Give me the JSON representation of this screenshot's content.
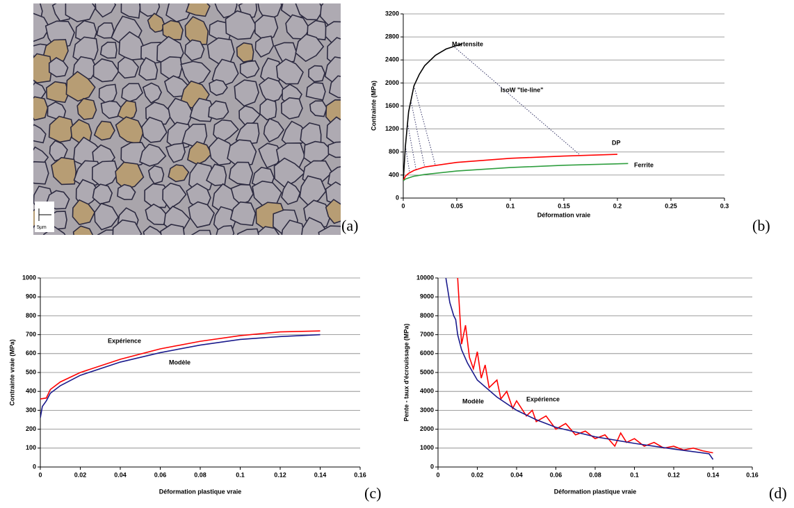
{
  "panel_labels": [
    "(a)",
    "(b)",
    "(c)",
    "(d)"
  ],
  "micrograph": {
    "scale_label": "5µm"
  },
  "chart_data": [
    {
      "type": "line",
      "xlabel": "Déformation vraie",
      "ylabel": "Contrainte (MPa)",
      "xlim": [
        0,
        0.3
      ],
      "xticks": [
        0,
        0.05,
        0.1,
        0.15,
        0.2,
        0.25,
        0.3
      ],
      "ylim": [
        0,
        3200
      ],
      "yticks": [
        0,
        400,
        800,
        1200,
        1600,
        2000,
        2400,
        2800,
        3200
      ],
      "grid": true,
      "series": [
        {
          "name": "Martensite",
          "color": "#000000",
          "x": [
            0,
            0.002,
            0.005,
            0.01,
            0.015,
            0.02,
            0.03,
            0.04,
            0.05,
            0.055
          ],
          "values": [
            300,
            900,
            1500,
            1950,
            2150,
            2300,
            2480,
            2590,
            2650,
            2680
          ]
        },
        {
          "name": "DP",
          "color": "#ff0000",
          "x": [
            0,
            0.002,
            0.005,
            0.01,
            0.02,
            0.05,
            0.1,
            0.15,
            0.2
          ],
          "values": [
            300,
            380,
            430,
            480,
            540,
            620,
            690,
            730,
            760
          ]
        },
        {
          "name": "Ferrite",
          "color": "#2e9e3e",
          "x": [
            0,
            0.002,
            0.005,
            0.01,
            0.02,
            0.05,
            0.1,
            0.15,
            0.21
          ],
          "values": [
            300,
            330,
            350,
            380,
            410,
            470,
            530,
            570,
            600
          ]
        }
      ],
      "tie_line_label": "IsoW \"tie-line\"",
      "tie_lines": [
        {
          "x": [
            0.048,
            0.165
          ],
          "values": [
            2620,
            750
          ]
        },
        {
          "x": [
            0.002,
            0.006
          ],
          "values": [
            900,
            440
          ]
        },
        {
          "x": [
            0.004,
            0.012
          ],
          "values": [
            1300,
            490
          ]
        },
        {
          "x": [
            0.007,
            0.02
          ],
          "values": [
            1700,
            540
          ]
        },
        {
          "x": [
            0.01,
            0.03
          ],
          "values": [
            1950,
            570
          ]
        }
      ]
    },
    {
      "type": "line",
      "xlabel": "Déformation plastique vraie",
      "ylabel": "Contrainte vraie (MPa)",
      "xlim": [
        0,
        0.16
      ],
      "xticks": [
        0,
        0.02,
        0.04,
        0.06,
        0.08,
        0.1,
        0.12,
        0.14,
        0.16
      ],
      "ylim": [
        0,
        1000
      ],
      "yticks": [
        0,
        100,
        200,
        300,
        400,
        500,
        600,
        700,
        800,
        900,
        1000
      ],
      "grid": true,
      "series": [
        {
          "name": "Expérience",
          "color": "#ff0000",
          "x": [
            0,
            0.003,
            0.005,
            0.01,
            0.02,
            0.04,
            0.06,
            0.08,
            0.1,
            0.12,
            0.14
          ],
          "values": [
            360,
            365,
            410,
            450,
            500,
            570,
            625,
            665,
            695,
            715,
            720
          ]
        },
        {
          "name": "Modèle",
          "color": "#1a1a8c",
          "x": [
            0,
            0.001,
            0.003,
            0.005,
            0.01,
            0.02,
            0.04,
            0.06,
            0.08,
            0.1,
            0.12,
            0.14
          ],
          "values": [
            260,
            320,
            350,
            390,
            430,
            485,
            555,
            605,
            645,
            675,
            690,
            700
          ]
        }
      ]
    },
    {
      "type": "line",
      "xlabel": "Déformation plastique vraie",
      "ylabel": "Pente - taux d'écrouissage (MPa)",
      "xlim": [
        0,
        0.16
      ],
      "xticks": [
        0,
        0.02,
        0.04,
        0.06,
        0.08,
        0.1,
        0.12,
        0.14,
        0.16
      ],
      "ylim": [
        0,
        10000
      ],
      "yticks": [
        0,
        1000,
        2000,
        3000,
        4000,
        5000,
        6000,
        7000,
        8000,
        9000,
        10000
      ],
      "grid": true,
      "series": [
        {
          "name": "Expérience",
          "color": "#ff0000",
          "x": [
            0.01,
            0.012,
            0.014,
            0.016,
            0.018,
            0.02,
            0.022,
            0.024,
            0.026,
            0.03,
            0.032,
            0.035,
            0.038,
            0.04,
            0.045,
            0.048,
            0.05,
            0.055,
            0.06,
            0.065,
            0.07,
            0.075,
            0.08,
            0.085,
            0.09,
            0.093,
            0.096,
            0.1,
            0.105,
            0.11,
            0.115,
            0.12,
            0.125,
            0.13,
            0.135,
            0.14
          ],
          "values": [
            10000,
            6500,
            7500,
            5800,
            5200,
            6100,
            4700,
            5400,
            4200,
            4600,
            3600,
            4000,
            3100,
            3500,
            2700,
            3000,
            2400,
            2700,
            2000,
            2300,
            1700,
            1900,
            1500,
            1700,
            1100,
            1800,
            1300,
            1500,
            1100,
            1300,
            1000,
            1100,
            900,
            1000,
            850,
            750
          ]
        },
        {
          "name": "Modèle",
          "color": "#1a1a8c",
          "x": [
            0.004,
            0.006,
            0.008,
            0.009,
            0.01,
            0.012,
            0.015,
            0.02,
            0.03,
            0.04,
            0.05,
            0.06,
            0.08,
            0.1,
            0.12,
            0.138,
            0.14
          ],
          "values": [
            10000,
            8700,
            8000,
            7800,
            7000,
            6200,
            5500,
            4600,
            3700,
            3000,
            2500,
            2100,
            1600,
            1250,
            950,
            700,
            400
          ]
        }
      ]
    }
  ]
}
